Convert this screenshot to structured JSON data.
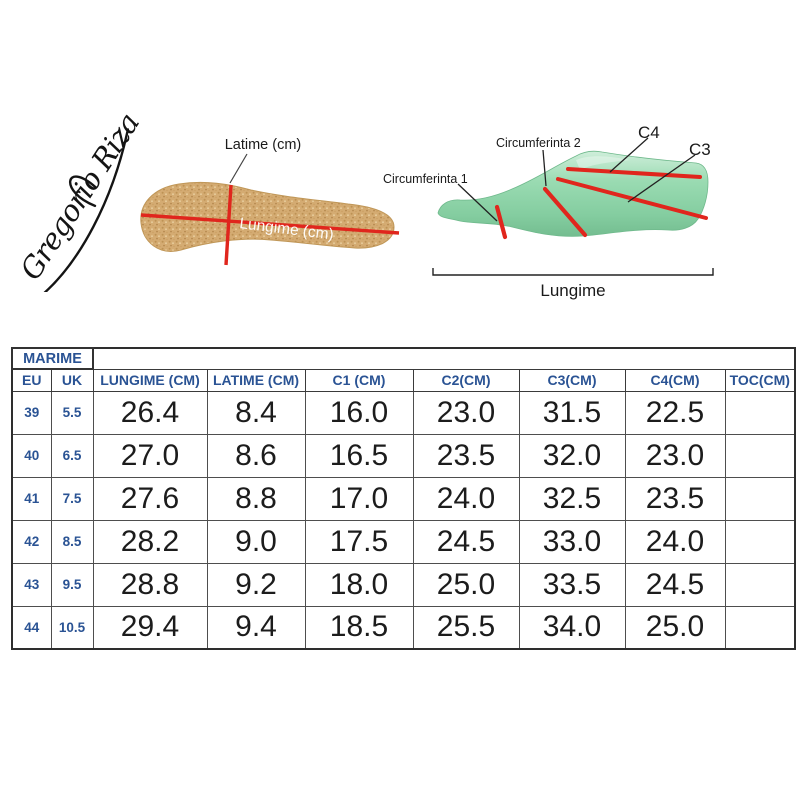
{
  "brand": {
    "signature_text": "Gregorio Riza"
  },
  "insole_diagram": {
    "width_label": "Latime (cm)",
    "length_label": "Lungime (cm)"
  },
  "last_diagram": {
    "c1_label": "Circumferinta 1",
    "c2_label": "Circumferinta 2",
    "c3_label": "C3",
    "c4_label": "C4",
    "length_label": "Lungime"
  },
  "colors": {
    "accent_blue": "#2a5394",
    "measure_red": "#e0261d",
    "insole_tan": "#d4ab72",
    "last_green": "#8cd3a4",
    "grid_dark": "#333333"
  },
  "table": {
    "group_header": "MARIME",
    "columns": [
      "EU",
      "UK",
      "LUNGIME (CM)",
      "LATIME (CM)",
      "C1 (CM)",
      "C2(CM)",
      "C3(CM)",
      "C4(CM)",
      "TOC(CM)"
    ],
    "rows": [
      {
        "cells": [
          "39",
          "5.5",
          "26.4",
          "8.4",
          "16.0",
          "23.0",
          "31.5",
          "22.5",
          ""
        ]
      },
      {
        "cells": [
          "40",
          "6.5",
          "27.0",
          "8.6",
          "16.5",
          "23.5",
          "32.0",
          "23.0",
          ""
        ]
      },
      {
        "cells": [
          "41",
          "7.5",
          "27.6",
          "8.8",
          "17.0",
          "24.0",
          "32.5",
          "23.5",
          ""
        ]
      },
      {
        "cells": [
          "42",
          "8.5",
          "28.2",
          "9.0",
          "17.5",
          "24.5",
          "33.0",
          "24.0",
          ""
        ]
      },
      {
        "cells": [
          "43",
          "9.5",
          "28.8",
          "9.2",
          "18.0",
          "25.0",
          "33.5",
          "24.5",
          ""
        ]
      },
      {
        "cells": [
          "44",
          "10.5",
          "29.4",
          "9.4",
          "18.5",
          "25.5",
          "34.0",
          "25.0",
          ""
        ]
      }
    ]
  }
}
